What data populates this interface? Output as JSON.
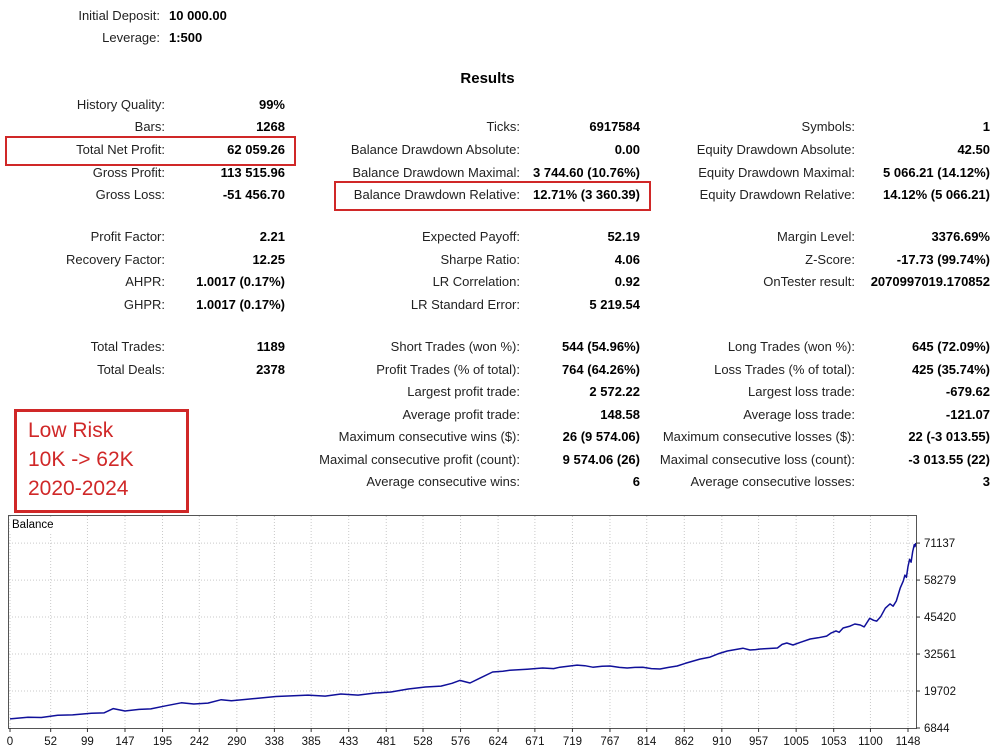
{
  "header": {
    "initial_deposit_label": "Initial Deposit:",
    "initial_deposit_value": "10 000.00",
    "leverage_label": "Leverage:",
    "leverage_value": "1:500",
    "results_title": "Results"
  },
  "annotation": {
    "lines": [
      "Low Risk",
      "10K -> 62K",
      "2020-2024"
    ],
    "color": "#d02828"
  },
  "stats": {
    "rows": [
      {
        "cells": [
          "History Quality:",
          "99%",
          "",
          "",
          "",
          ""
        ]
      },
      {
        "cells": [
          "Bars:",
          "1268",
          "Ticks:",
          "6917584",
          "Symbols:",
          "1"
        ]
      },
      {
        "cells": [
          "Total Net Profit:",
          "62 059.26",
          "Balance Drawdown Absolute:",
          "0.00",
          "Equity Drawdown Absolute:",
          "42.50"
        ]
      },
      {
        "cells": [
          "Gross Profit:",
          "113 515.96",
          "Balance Drawdown Maximal:",
          "3 744.60 (10.76%)",
          "Equity Drawdown Maximal:",
          "5 066.21 (14.12%)"
        ]
      },
      {
        "cells": [
          "Gross Loss:",
          "-51 456.70",
          "Balance Drawdown Relative:",
          "12.71% (3 360.39)",
          "Equity Drawdown Relative:",
          "14.12% (5 066.21)"
        ]
      },
      {
        "spacer": true
      },
      {
        "cells": [
          "Profit Factor:",
          "2.21",
          "Expected Payoff:",
          "52.19",
          "Margin Level:",
          "3376.69%"
        ]
      },
      {
        "cells": [
          "Recovery Factor:",
          "12.25",
          "Sharpe Ratio:",
          "4.06",
          "Z-Score:",
          "-17.73 (99.74%)"
        ]
      },
      {
        "cells": [
          "AHPR:",
          "1.0017 (0.17%)",
          "LR Correlation:",
          "0.92",
          "OnTester result:",
          "2070997019.170852"
        ]
      },
      {
        "cells": [
          "GHPR:",
          "1.0017 (0.17%)",
          "LR Standard Error:",
          "5 219.54",
          "",
          ""
        ]
      },
      {
        "spacer": true
      },
      {
        "cells": [
          "Total Trades:",
          "1189",
          "Short Trades (won %):",
          "544 (54.96%)",
          "Long Trades (won %):",
          "645 (72.09%)"
        ]
      },
      {
        "cells": [
          "Total Deals:",
          "2378",
          "Profit Trades (% of total):",
          "764 (64.26%)",
          "Loss Trades (% of total):",
          "425 (35.74%)"
        ]
      },
      {
        "cells": [
          "",
          "",
          "Largest profit trade:",
          "2 572.22",
          "Largest loss trade:",
          "-679.62"
        ]
      },
      {
        "cells": [
          "",
          "",
          "Average profit trade:",
          "148.58",
          "Average loss trade:",
          "-121.07"
        ]
      },
      {
        "cells": [
          "",
          "",
          "Maximum consecutive wins ($):",
          "26 (9 574.06)",
          "Maximum consecutive losses ($):",
          "22 (-3 013.55)"
        ]
      },
      {
        "cells": [
          "",
          "",
          "Maximal consecutive profit (count):",
          "9 574.06 (26)",
          "Maximal consecutive loss (count):",
          "-3 013.55 (22)"
        ]
      },
      {
        "cells": [
          "",
          "",
          "Average consecutive wins:",
          "6",
          "Average consecutive losses:",
          "3"
        ]
      }
    ],
    "highlight_color": "#d02828"
  },
  "chart_data": {
    "type": "line",
    "series_label": "Balance",
    "line_color": "#10109a",
    "grid_color": "#c9c9c9",
    "border_color": "#555555",
    "x_ticks": [
      0,
      52,
      99,
      147,
      195,
      242,
      290,
      338,
      385,
      433,
      481,
      528,
      576,
      624,
      671,
      719,
      767,
      814,
      862,
      910,
      957,
      1005,
      1053,
      1100,
      1148
    ],
    "y_ticks": [
      6844,
      19702,
      32561,
      45420,
      58279,
      71137
    ],
    "xlim": [
      0,
      1160
    ],
    "ylim": [
      6844,
      80900
    ],
    "points": [
      [
        0,
        10000
      ],
      [
        23,
        10600
      ],
      [
        40,
        10500
      ],
      [
        61,
        11300
      ],
      [
        80,
        11400
      ],
      [
        104,
        12000
      ],
      [
        120,
        12100
      ],
      [
        132,
        13600
      ],
      [
        147,
        12750
      ],
      [
        165,
        13300
      ],
      [
        180,
        13500
      ],
      [
        200,
        14600
      ],
      [
        219,
        15600
      ],
      [
        235,
        15200
      ],
      [
        253,
        15500
      ],
      [
        270,
        16700
      ],
      [
        283,
        16300
      ],
      [
        295,
        16600
      ],
      [
        317,
        17200
      ],
      [
        340,
        17800
      ],
      [
        359,
        18000
      ],
      [
        381,
        18300
      ],
      [
        403,
        17950
      ],
      [
        423,
        18650
      ],
      [
        445,
        18300
      ],
      [
        467,
        19000
      ],
      [
        487,
        19350
      ],
      [
        509,
        20400
      ],
      [
        531,
        21100
      ],
      [
        551,
        21400
      ],
      [
        565,
        22400
      ],
      [
        575,
        23400
      ],
      [
        588,
        22500
      ],
      [
        601,
        24200
      ],
      [
        617,
        26300
      ],
      [
        630,
        26600
      ],
      [
        639,
        26900
      ],
      [
        661,
        27300
      ],
      [
        681,
        27700
      ],
      [
        695,
        27500
      ],
      [
        703,
        28000
      ],
      [
        725,
        28700
      ],
      [
        735,
        28500
      ],
      [
        745,
        28000
      ],
      [
        757,
        28300
      ],
      [
        767,
        28400
      ],
      [
        779,
        27900
      ],
      [
        789,
        27700
      ],
      [
        799,
        27900
      ],
      [
        809,
        28000
      ],
      [
        820,
        27500
      ],
      [
        831,
        27350
      ],
      [
        842,
        27900
      ],
      [
        853,
        28400
      ],
      [
        863,
        29300
      ],
      [
        873,
        30100
      ],
      [
        882,
        30800
      ],
      [
        895,
        31500
      ],
      [
        905,
        32600
      ],
      [
        917,
        33600
      ],
      [
        927,
        34100
      ],
      [
        937,
        34600
      ],
      [
        946,
        33950
      ],
      [
        953,
        34100
      ],
      [
        959,
        34300
      ],
      [
        970,
        34500
      ],
      [
        981,
        34650
      ],
      [
        987,
        35900
      ],
      [
        993,
        36380
      ],
      [
        1001,
        35700
      ],
      [
        1010,
        36600
      ],
      [
        1023,
        37800
      ],
      [
        1033,
        38200
      ],
      [
        1044,
        38800
      ],
      [
        1050,
        39900
      ],
      [
        1056,
        40600
      ],
      [
        1060,
        40100
      ],
      [
        1065,
        41600
      ],
      [
        1074,
        42290
      ],
      [
        1080,
        43000
      ],
      [
        1087,
        42640
      ],
      [
        1092,
        42000
      ],
      [
        1099,
        45000
      ],
      [
        1104,
        44300
      ],
      [
        1108,
        44000
      ],
      [
        1113,
        45500
      ],
      [
        1119,
        48500
      ],
      [
        1125,
        50000
      ],
      [
        1129,
        49200
      ],
      [
        1133,
        51000
      ],
      [
        1138,
        55500
      ],
      [
        1142,
        58000
      ],
      [
        1144,
        60000
      ],
      [
        1146,
        59200
      ],
      [
        1148,
        63000
      ],
      [
        1150,
        65500
      ],
      [
        1152,
        64500
      ],
      [
        1154,
        68200
      ],
      [
        1156,
        70600
      ],
      [
        1157,
        69900
      ],
      [
        1158,
        71137
      ]
    ]
  }
}
